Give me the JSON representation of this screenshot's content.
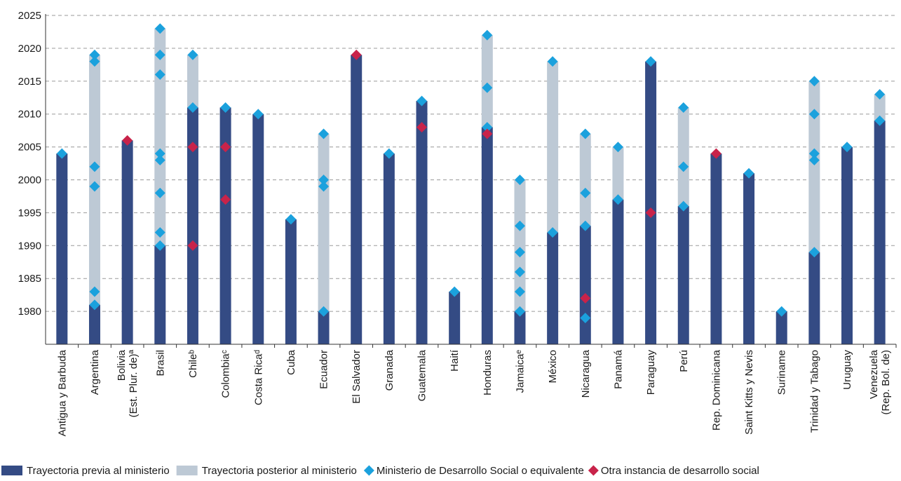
{
  "chart_data": {
    "type": "bar",
    "ylim": [
      1975,
      2025
    ],
    "yticks": [
      1980,
      1985,
      1990,
      1995,
      2000,
      2005,
      2010,
      2015,
      2020,
      2025
    ],
    "grid": "horizontal-dashed",
    "legend_position": "bottom",
    "colors": {
      "previa": "#344B84",
      "posterior": "#BDC9D5",
      "ministerio": "#1BA1DD",
      "otra": "#C8234A",
      "grid": "#9a9a9a",
      "axis": "#333333"
    },
    "legend": {
      "previa": "Trayectoria previa al ministerio",
      "posterior": "Trayectoria posterior al ministerio",
      "ministerio": "Ministerio de Desarrollo Social o equivalente",
      "otra": "Otra instancia de desarrollo social"
    },
    "countries": [
      {
        "label": [
          "Antigua y Barbuda"
        ],
        "previa": [
          1975,
          2004
        ],
        "posterior": null,
        "ministerio": [
          2004
        ],
        "otra": []
      },
      {
        "label": [
          "Argentina"
        ],
        "previa": [
          1975,
          1981
        ],
        "posterior": [
          1981,
          2019
        ],
        "ministerio": [
          1981,
          1983,
          1999,
          2002,
          2018,
          2019
        ],
        "otra": []
      },
      {
        "label": [
          "Bolivia",
          "(Est. Plur. de)ª"
        ],
        "previa": [
          1975,
          2006
        ],
        "posterior": null,
        "ministerio": [],
        "otra": [
          2006
        ]
      },
      {
        "label": [
          "Brasil"
        ],
        "previa": [
          1975,
          1990
        ],
        "posterior": [
          1990,
          2023
        ],
        "ministerio": [
          1990,
          1992,
          1998,
          2003,
          2004,
          2016,
          2019,
          2023
        ],
        "otra": []
      },
      {
        "label": [
          "Chileᵇ"
        ],
        "previa": [
          1975,
          2011
        ],
        "posterior": [
          2011,
          2019
        ],
        "ministerio": [
          2011,
          2019
        ],
        "otra": [
          1990,
          2005
        ]
      },
      {
        "label": [
          "Colombiaᶜ"
        ],
        "previa": [
          1975,
          2011
        ],
        "posterior": null,
        "ministerio": [
          2011
        ],
        "otra": [
          1997,
          2005
        ]
      },
      {
        "label": [
          "Costa Ricaᵈ"
        ],
        "previa": [
          1975,
          2010
        ],
        "posterior": null,
        "ministerio": [
          2010
        ],
        "otra": []
      },
      {
        "label": [
          "Cuba"
        ],
        "previa": [
          1975,
          1994
        ],
        "posterior": null,
        "ministerio": [
          1994
        ],
        "otra": []
      },
      {
        "label": [
          "Ecuador"
        ],
        "previa": [
          1975,
          1980
        ],
        "posterior": [
          1980,
          2007
        ],
        "ministerio": [
          1980,
          1999,
          2000,
          2007
        ],
        "otra": []
      },
      {
        "label": [
          "El Salvador"
        ],
        "previa": [
          1975,
          2019
        ],
        "posterior": null,
        "ministerio": [],
        "otra": [
          2019
        ]
      },
      {
        "label": [
          "Granada"
        ],
        "previa": [
          1975,
          2004
        ],
        "posterior": null,
        "ministerio": [
          2004
        ],
        "otra": []
      },
      {
        "label": [
          "Guatemala"
        ],
        "previa": [
          1975,
          2012
        ],
        "posterior": null,
        "ministerio": [
          2012
        ],
        "otra": [
          2008
        ]
      },
      {
        "label": [
          "Haití"
        ],
        "previa": [
          1975,
          1983
        ],
        "posterior": null,
        "ministerio": [
          1983
        ],
        "otra": []
      },
      {
        "label": [
          "Honduras"
        ],
        "previa": [
          1975,
          2008
        ],
        "posterior": [
          2008,
          2022
        ],
        "ministerio": [
          2008,
          2014,
          2022
        ],
        "otra": [
          2007
        ]
      },
      {
        "label": [
          "Jamaicaᵉ"
        ],
        "previa": [
          1975,
          1980
        ],
        "posterior": [
          1980,
          2000
        ],
        "ministerio": [
          1980,
          1983,
          1986,
          1989,
          1993,
          2000
        ],
        "otra": []
      },
      {
        "label": [
          "México"
        ],
        "previa": [
          1975,
          1992
        ],
        "posterior": [
          1992,
          2018
        ],
        "ministerio": [
          1992,
          2018
        ],
        "otra": []
      },
      {
        "label": [
          "Nicaragua"
        ],
        "previa": [
          1975,
          1993
        ],
        "posterior": [
          1993,
          2007
        ],
        "ministerio": [
          1979,
          1993,
          1998,
          2007
        ],
        "otra": [
          1982
        ]
      },
      {
        "label": [
          "Panamá"
        ],
        "previa": [
          1975,
          1997
        ],
        "posterior": [
          1997,
          2005
        ],
        "ministerio": [
          1997,
          2005
        ],
        "otra": []
      },
      {
        "label": [
          "Paraguay"
        ],
        "previa": [
          1975,
          2018
        ],
        "posterior": null,
        "ministerio": [
          2018
        ],
        "otra": [
          1995
        ]
      },
      {
        "label": [
          "Perú"
        ],
        "previa": [
          1975,
          1996
        ],
        "posterior": [
          1996,
          2011
        ],
        "ministerio": [
          1996,
          2002,
          2011
        ],
        "otra": []
      },
      {
        "label": [
          "Rep. Dominicana"
        ],
        "previa": [
          1975,
          2004
        ],
        "posterior": null,
        "ministerio": [],
        "otra": [
          2004
        ]
      },
      {
        "label": [
          "Saint Kitts y Nevis"
        ],
        "previa": [
          1975,
          2001
        ],
        "posterior": null,
        "ministerio": [
          2001
        ],
        "otra": []
      },
      {
        "label": [
          "Suriname"
        ],
        "previa": [
          1975,
          1980
        ],
        "posterior": null,
        "ministerio": [
          1980
        ],
        "otra": []
      },
      {
        "label": [
          "Trinidad y Tabago"
        ],
        "previa": [
          1975,
          1989
        ],
        "posterior": [
          1989,
          2015
        ],
        "ministerio": [
          1989,
          2003,
          2004,
          2010,
          2015
        ],
        "otra": []
      },
      {
        "label": [
          "Uruguay"
        ],
        "previa": [
          1975,
          2005
        ],
        "posterior": null,
        "ministerio": [
          2005
        ],
        "otra": []
      },
      {
        "label": [
          "Venezuela",
          "(Rep. Bol. de)"
        ],
        "previa": [
          1975,
          2009
        ],
        "posterior": [
          2009,
          2013
        ],
        "ministerio": [
          2009,
          2013
        ],
        "otra": []
      }
    ]
  }
}
